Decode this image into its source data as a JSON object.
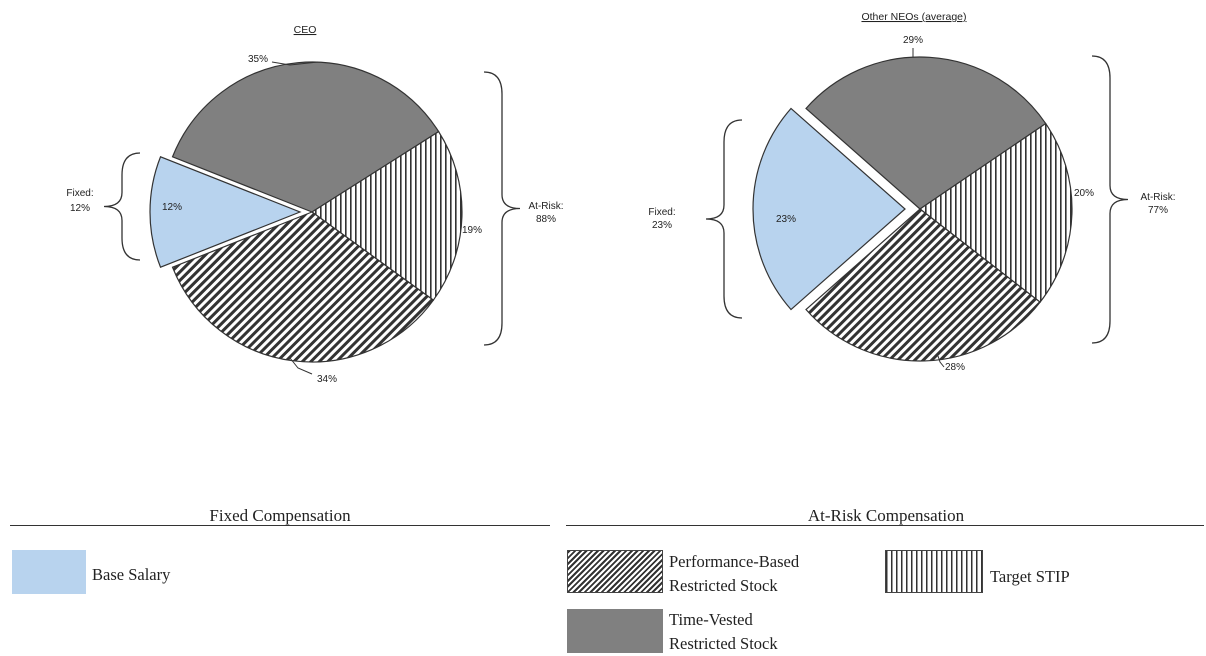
{
  "colors": {
    "base_salary": "#b8d3ee",
    "time_vested": "#808080",
    "performance": "#4a4a4a",
    "stip": "#ffffff",
    "edge": "#333333"
  },
  "chart_data": [
    {
      "type": "pie",
      "title": "CEO",
      "slices": [
        {
          "name": "Base Salary",
          "value": 12,
          "label": "12%",
          "exploded": true
        },
        {
          "name": "Time-Vested Restricted Stock",
          "value": 35,
          "label": "35%"
        },
        {
          "name": "Target STIP",
          "value": 19,
          "label": "19%"
        },
        {
          "name": "Performance-Based Restricted Stock",
          "value": 34,
          "label": "34%"
        }
      ],
      "groups": [
        {
          "label": "Fixed:",
          "value": "12%"
        },
        {
          "label": "At-Risk:",
          "value": "88%"
        }
      ]
    },
    {
      "type": "pie",
      "title": "Other NEOs (average)",
      "slices": [
        {
          "name": "Base Salary",
          "value": 23,
          "label": "23%",
          "exploded": true
        },
        {
          "name": "Time-Vested Restricted Stock",
          "value": 29,
          "label": "29%"
        },
        {
          "name": "Target STIP",
          "value": 20,
          "label": "20%"
        },
        {
          "name": "Performance-Based Restricted Stock",
          "value": 28,
          "label": "28%"
        }
      ],
      "groups": [
        {
          "label": "Fixed:",
          "value": "23%"
        },
        {
          "label": "At-Risk:",
          "value": "77%"
        }
      ]
    }
  ],
  "legend": {
    "fixed_header": "Fixed Compensation",
    "atrisk_header": "At-Risk Compensation",
    "base_salary": "Base Salary",
    "performance_line1": "Performance-Based",
    "performance_line2": "Restricted Stock",
    "stip": "Target STIP",
    "time_vested_line1": "Time-Vested",
    "time_vested_line2": "Restricted Stock"
  }
}
